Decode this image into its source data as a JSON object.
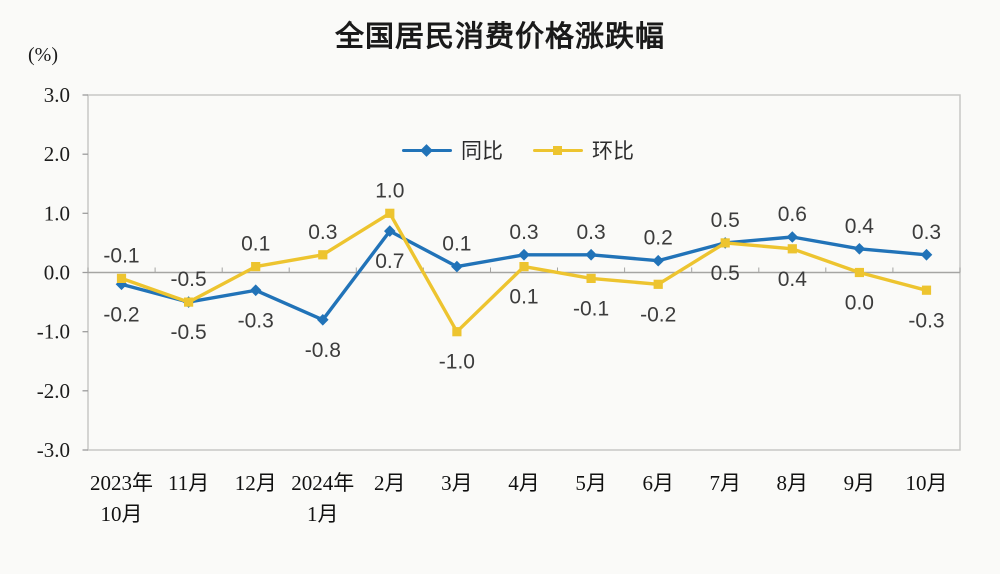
{
  "title": "全国居民消费价格涨跌幅",
  "y_axis_unit": "(%)",
  "chart_data": {
    "type": "line",
    "title": "全国居民消费价格涨跌幅",
    "ylabel": "(%)",
    "ylim": [
      -3.0,
      3.0
    ],
    "ytick_values": [
      3,
      2,
      1,
      0,
      -1,
      -2,
      -3
    ],
    "ytick_labels": [
      "3.0",
      "2.0",
      "1.0",
      "0.0",
      "-1.0",
      "-2.0",
      "-3.0"
    ],
    "categories": [
      [
        "2023年",
        "10月"
      ],
      [
        "11月"
      ],
      [
        "12月"
      ],
      [
        "2024年",
        "1月"
      ],
      [
        "2月"
      ],
      [
        "3月"
      ],
      [
        "4月"
      ],
      [
        "5月"
      ],
      [
        "6月"
      ],
      [
        "7月"
      ],
      [
        "8月"
      ],
      [
        "9月"
      ],
      [
        "10月"
      ]
    ],
    "series": [
      {
        "name": "同比",
        "marker": "diamond",
        "color": "#2173b8",
        "values": [
          -0.2,
          -0.5,
          -0.3,
          -0.8,
          0.7,
          0.1,
          0.3,
          0.3,
          0.2,
          0.5,
          0.6,
          0.4,
          0.3
        ]
      },
      {
        "name": "环比",
        "marker": "square",
        "color": "#edc42f",
        "values": [
          -0.1,
          -0.5,
          0.1,
          0.3,
          1.0,
          -1.0,
          0.1,
          -0.1,
          -0.2,
          0.5,
          0.4,
          0.0,
          -0.3
        ]
      }
    ],
    "grid": false,
    "legend_position": "top-center",
    "label_color": "#3c3c3c",
    "axis_line_color": "#a5a5a3",
    "plot_border_color": "#c7c7c5"
  }
}
